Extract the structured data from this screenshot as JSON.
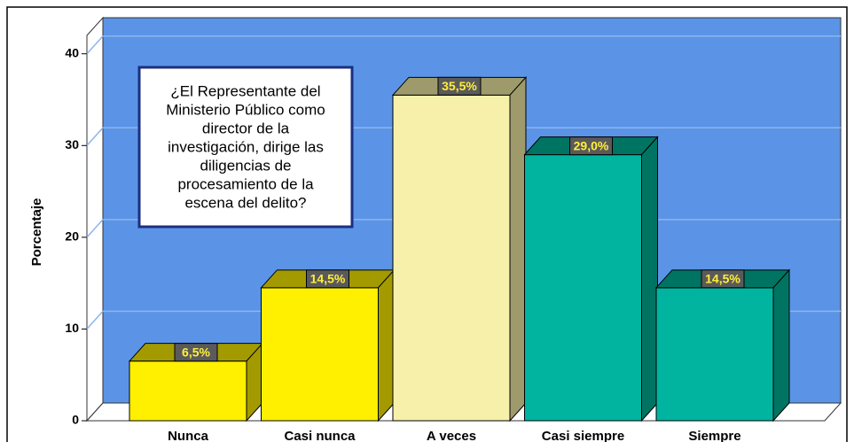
{
  "chart_data": {
    "type": "bar3d",
    "y_label": "Porcentaje",
    "annotation": [
      "¿El Representante del",
      "Ministerio Público como",
      "director de la",
      "investigación, dirige las",
      "diligencias de",
      "procesamiento de la",
      "escena del delito?"
    ],
    "categories": [
      "Nunca",
      "Casi nunca",
      "A veces",
      "Casi siempre",
      "Siempre"
    ],
    "values": [
      6.5,
      14.5,
      35.5,
      29.0,
      14.5
    ],
    "value_labels": [
      "6,5%",
      "14,5%",
      "35,5%",
      "29,0%",
      "14,5%"
    ],
    "colors": [
      "#fff000",
      "#fff000",
      "#f6f0aa",
      "#00b4a0",
      "#00b4a0"
    ],
    "side_colors": [
      "#a39a00",
      "#a39a00",
      "#9f9a6c",
      "#007462",
      "#007462"
    ],
    "wall_color": "#5b94e6",
    "ylim": [
      0,
      42
    ],
    "yticks": [
      0,
      10,
      20,
      30,
      40
    ],
    "grid": true
  }
}
